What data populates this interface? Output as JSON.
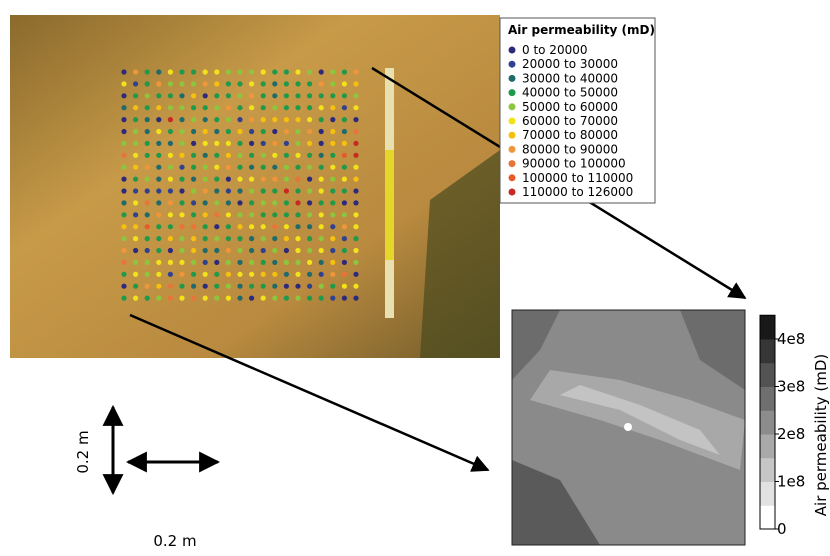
{
  "legend": {
    "title": "Air permeability (mD)",
    "items": [
      {
        "label": "0 to 20000",
        "color": "#2d2a7e"
      },
      {
        "label": "20000 to 30000",
        "color": "#2f418f"
      },
      {
        "label": "30000 to 40000",
        "color": "#1f6b6b"
      },
      {
        "label": "40000 to 50000",
        "color": "#1f9a4b"
      },
      {
        "label": "50000 to 60000",
        "color": "#8cc63f"
      },
      {
        "label": "60000 to 70000",
        "color": "#f2e21a"
      },
      {
        "label": "70000 to 80000",
        "color": "#f5c10e"
      },
      {
        "label": "80000 to 90000",
        "color": "#f0963a"
      },
      {
        "label": "90000 to 100000",
        "color": "#e9743a"
      },
      {
        "label": "100000 to 110000",
        "color": "#e85b26"
      },
      {
        "label": "110000 to 126000",
        "color": "#c62a22"
      }
    ]
  },
  "colorbar": {
    "label": "Air permeability (mD)",
    "lim": [
      0,
      450000000
    ],
    "ticks": [
      0,
      {
        "value": 100000000,
        "label": "1e8"
      },
      {
        "value": 200000000,
        "label": "2e8"
      },
      {
        "value": 300000000,
        "label": "3e8"
      },
      {
        "value": 400000000,
        "label": "4e8"
      }
    ]
  },
  "scale": {
    "vertical": "0.2 m",
    "horizontal": "0.2 m"
  }
}
